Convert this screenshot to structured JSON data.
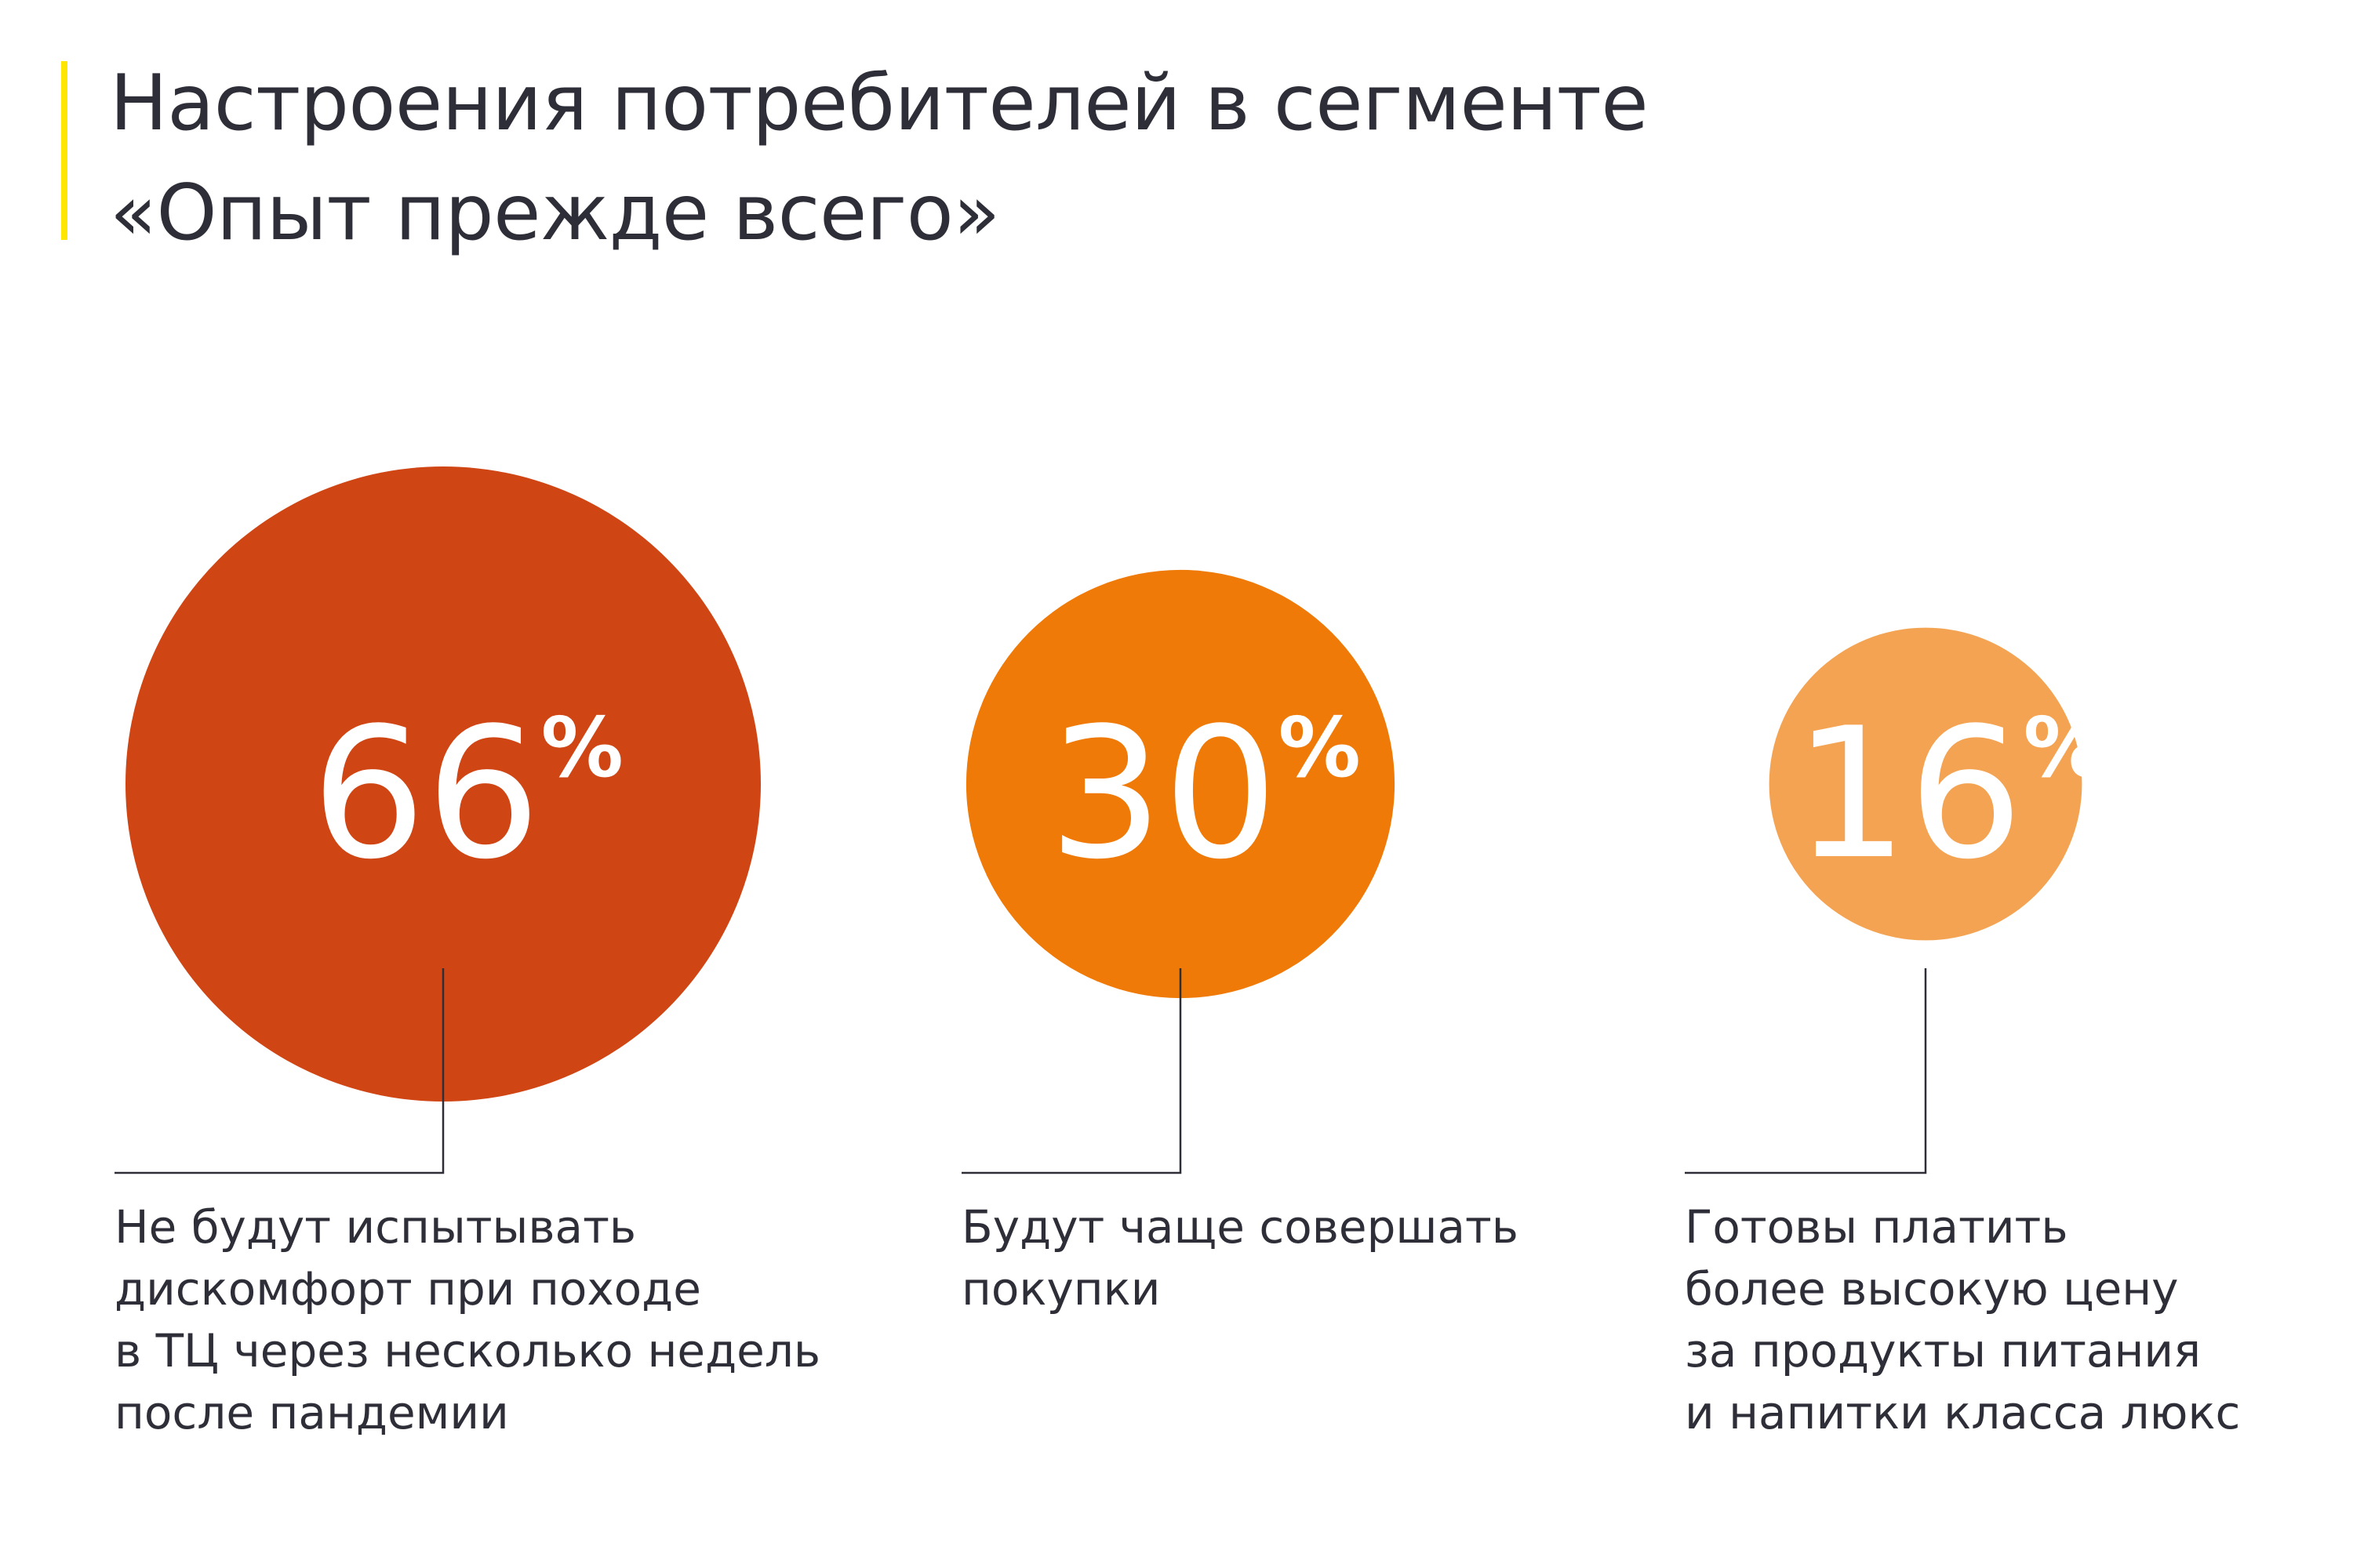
{
  "title_lines": [
    "Настроения потребителей в сегменте",
    "«Опыт прежде всего»"
  ],
  "colors": {
    "accent": "#ffe600",
    "text": "#2e2e38",
    "leader_line": "#2e2e38",
    "value_text": "#ffffff"
  },
  "chart_data": {
    "type": "bubble",
    "unit_symbol": "%",
    "items": [
      {
        "value": 66,
        "label": "66",
        "color": "#d04514",
        "caption_lines": [
          "Не будут испытывать",
          "дискомфорт при походе",
          "в ТЦ через несколько недель",
          "после пандемии"
        ]
      },
      {
        "value": 30,
        "label": "30",
        "color": "#ef7a07",
        "caption_lines": [
          "Будут чаще совершать",
          "покупки"
        ]
      },
      {
        "value": 16,
        "label": "16",
        "color": "#f4a352",
        "caption_lines": [
          "Готовы платить",
          "более высокую цену",
          "за продукты питания",
          "и напитки класса люкс"
        ]
      }
    ]
  }
}
